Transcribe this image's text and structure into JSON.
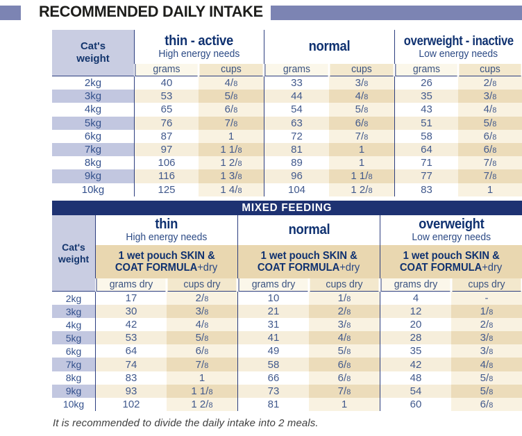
{
  "page_title": "RECOMMENDED DAILY INTAKE",
  "footer_note": "It is recommended to divide the daily intake into 2 meals.",
  "colors": {
    "banner_purple": "#7c84b3",
    "navy": "#1e3272",
    "lavender": "#c9cde2",
    "tan_band": "#e9d7b0",
    "stripe_tan": "#ecdcba",
    "text_navy": "#41598c"
  },
  "daily_table": {
    "weight_header": "Cat's\nweight",
    "columns": [
      {
        "title": "thin - active",
        "subtitle": "High energy needs",
        "sub": [
          "grams",
          "cups"
        ]
      },
      {
        "title": "normal",
        "subtitle": "",
        "sub": [
          "grams",
          "cups"
        ]
      },
      {
        "title": "overweight - inactive",
        "subtitle": "Low energy needs",
        "sub": [
          "grams",
          "cups"
        ]
      }
    ],
    "rows": [
      {
        "weight": "2kg",
        "values": [
          "40",
          "4/8",
          "33",
          "3/8",
          "26",
          "2/8"
        ]
      },
      {
        "weight": "3kg",
        "values": [
          "53",
          "5/8",
          "44",
          "4/8",
          "35",
          "3/8"
        ]
      },
      {
        "weight": "4kg",
        "values": [
          "65",
          "6/8",
          "54",
          "5/8",
          "43",
          "4/8"
        ]
      },
      {
        "weight": "5kg",
        "values": [
          "76",
          "7/8",
          "63",
          "6/8",
          "51",
          "5/8"
        ]
      },
      {
        "weight": "6kg",
        "values": [
          "87",
          "1",
          "72",
          "7/8",
          "58",
          "6/8"
        ]
      },
      {
        "weight": "7kg",
        "values": [
          "97",
          "1 1/8",
          "81",
          "1",
          "64",
          "6/8"
        ]
      },
      {
        "weight": "8kg",
        "values": [
          "106",
          "1 2/8",
          "89",
          "1",
          "71",
          "7/8"
        ]
      },
      {
        "weight": "9kg",
        "values": [
          "116",
          "1 3/8",
          "96",
          "1 1/8",
          "77",
          "7/8"
        ]
      },
      {
        "weight": "10kg",
        "values": [
          "125",
          "1 4/8",
          "104",
          "1 2/8",
          "83",
          "1"
        ]
      }
    ]
  },
  "mixed_table": {
    "title": "MIXED FEEDING",
    "weight_header": "Cat's\nweight",
    "columns": [
      {
        "title": "thin",
        "subtitle": "High energy needs",
        "pouch_line1": "1 wet pouch SKIN &",
        "pouch_line2_bold": "COAT FORMULA",
        "pouch_line2_rest": "+dry",
        "sub": [
          "grams dry",
          "cups dry"
        ]
      },
      {
        "title": "normal",
        "subtitle": "",
        "pouch_line1": "1 wet pouch SKIN &",
        "pouch_line2_bold": "COAT FORMULA",
        "pouch_line2_rest": "+dry",
        "sub": [
          "grams dry",
          "cups dry"
        ]
      },
      {
        "title": "overweight",
        "subtitle": "Low energy needs",
        "pouch_line1": "1 wet pouch SKIN &",
        "pouch_line2_bold": "COAT FORMULA",
        "pouch_line2_rest": "+dry",
        "sub": [
          "grams dry",
          "cups dry"
        ]
      }
    ],
    "rows": [
      {
        "weight": "2kg",
        "values": [
          "17",
          "2/8",
          "10",
          "1/8",
          "4",
          "-"
        ]
      },
      {
        "weight": "3kg",
        "values": [
          "30",
          "3/8",
          "21",
          "2/8",
          "12",
          "1/8"
        ]
      },
      {
        "weight": "4kg",
        "values": [
          "42",
          "4/8",
          "31",
          "3/8",
          "20",
          "2/8"
        ]
      },
      {
        "weight": "5kg",
        "values": [
          "53",
          "5/8",
          "41",
          "4/8",
          "28",
          "3/8"
        ]
      },
      {
        "weight": "6kg",
        "values": [
          "64",
          "6/8",
          "49",
          "5/8",
          "35",
          "3/8"
        ]
      },
      {
        "weight": "7kg",
        "values": [
          "74",
          "7/8",
          "58",
          "6/8",
          "42",
          "4/8"
        ]
      },
      {
        "weight": "8kg",
        "values": [
          "83",
          "1",
          "66",
          "6/8",
          "48",
          "5/8"
        ]
      },
      {
        "weight": "9kg",
        "values": [
          "93",
          "1 1/8",
          "73",
          "7/8",
          "54",
          "5/8"
        ]
      },
      {
        "weight": "10kg",
        "values": [
          "102",
          "1 2/8",
          "81",
          "1",
          "60",
          "6/8"
        ]
      }
    ]
  }
}
